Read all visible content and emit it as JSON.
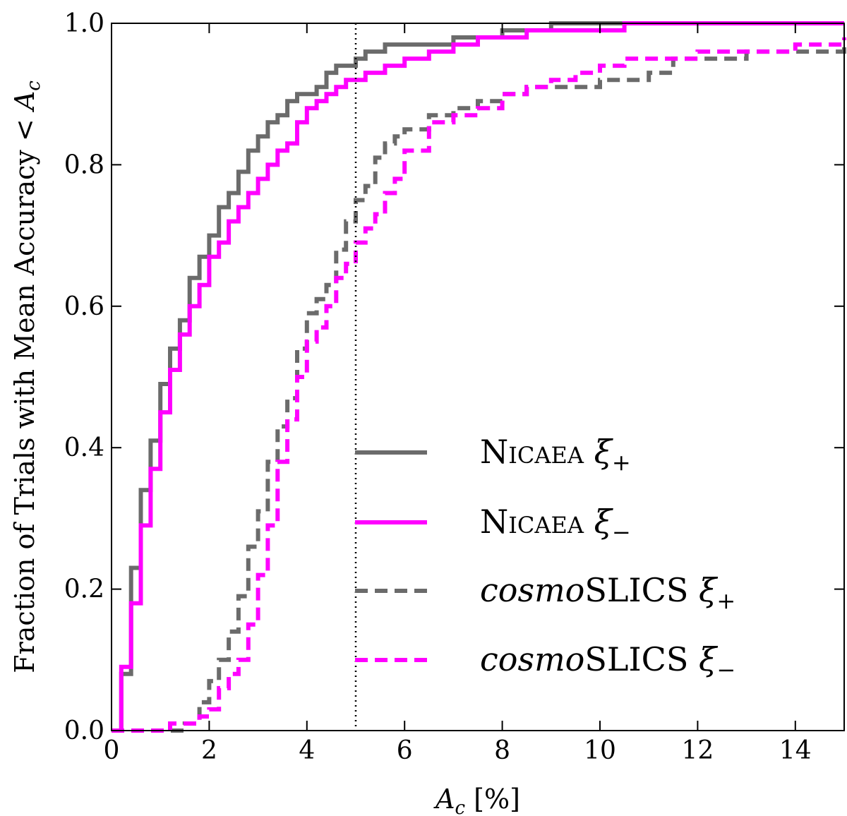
{
  "chart_data": {
    "type": "line",
    "xlabel": "A_c [%]",
    "ylabel": "Fraction of Trials with Mean Accuracy < A_c",
    "xlim": [
      0,
      15
    ],
    "ylim": [
      0,
      1.0
    ],
    "xticks": [
      "0",
      "2",
      "4",
      "6",
      "8",
      "10",
      "12",
      "14"
    ],
    "yticks": [
      "0.0",
      "0.2",
      "0.4",
      "0.6",
      "0.8",
      "1.0"
    ],
    "grid": false,
    "legend_position": "lower-right",
    "reference_line": {
      "x": 5,
      "style": "dotted"
    },
    "series": [
      {
        "name": "Nicaea ξ+",
        "name_main": "Nicaea",
        "name_symbol": "ξ",
        "name_sub": "+",
        "color": "#6b6b6b",
        "linestyle": "solid",
        "x": [
          0,
          0.2,
          0.4,
          0.6,
          0.8,
          1.0,
          1.2,
          1.4,
          1.6,
          1.8,
          2.0,
          2.2,
          2.4,
          2.6,
          2.8,
          3.0,
          3.2,
          3.4,
          3.6,
          3.8,
          4.0,
          4.2,
          4.4,
          4.6,
          4.8,
          5.0,
          5.2,
          5.4,
          5.6,
          5.8,
          6.0,
          6.5,
          7.0,
          7.5,
          8.0,
          8.5,
          9.0,
          10.0,
          15.0
        ],
        "y": [
          0.0,
          0.08,
          0.23,
          0.34,
          0.41,
          0.49,
          0.54,
          0.58,
          0.64,
          0.67,
          0.7,
          0.74,
          0.76,
          0.79,
          0.82,
          0.84,
          0.86,
          0.87,
          0.89,
          0.9,
          0.9,
          0.91,
          0.93,
          0.94,
          0.94,
          0.95,
          0.96,
          0.96,
          0.97,
          0.97,
          0.97,
          0.97,
          0.98,
          0.98,
          0.99,
          0.99,
          1.0,
          1.0,
          1.0
        ]
      },
      {
        "name": "Nicaea ξ−",
        "name_main": "Nicaea",
        "name_symbol": "ξ",
        "name_sub": "−",
        "color": "#ff00ff",
        "linestyle": "solid",
        "x": [
          0,
          0.2,
          0.4,
          0.6,
          0.8,
          1.0,
          1.2,
          1.4,
          1.6,
          1.8,
          2.0,
          2.2,
          2.4,
          2.6,
          2.8,
          3.0,
          3.2,
          3.4,
          3.6,
          3.8,
          4.0,
          4.2,
          4.4,
          4.6,
          4.8,
          5.0,
          5.2,
          5.4,
          5.6,
          5.8,
          6.0,
          6.5,
          7.0,
          7.5,
          8.0,
          8.5,
          9.0,
          10.0,
          10.5,
          15.0
        ],
        "y": [
          0.0,
          0.09,
          0.18,
          0.29,
          0.37,
          0.45,
          0.51,
          0.56,
          0.6,
          0.63,
          0.67,
          0.69,
          0.72,
          0.74,
          0.76,
          0.78,
          0.8,
          0.82,
          0.83,
          0.86,
          0.88,
          0.89,
          0.9,
          0.91,
          0.92,
          0.92,
          0.93,
          0.93,
          0.94,
          0.94,
          0.95,
          0.96,
          0.97,
          0.98,
          0.98,
          0.99,
          0.99,
          0.99,
          1.0,
          1.0
        ]
      },
      {
        "name": "cosmoSLICS ξ+",
        "name_main": "cosmo",
        "name_main2": "SLICS",
        "name_symbol": "ξ",
        "name_sub": "+",
        "color": "#6b6b6b",
        "linestyle": "dashed",
        "x": [
          0,
          0.5,
          1.0,
          1.2,
          1.5,
          1.8,
          2.0,
          2.2,
          2.4,
          2.6,
          2.8,
          3.0,
          3.2,
          3.4,
          3.6,
          3.8,
          4.0,
          4.2,
          4.4,
          4.6,
          4.8,
          5.0,
          5.2,
          5.4,
          5.6,
          5.8,
          6.0,
          6.5,
          7.0,
          7.5,
          8.0,
          8.5,
          9.0,
          9.5,
          10.0,
          10.5,
          11.0,
          11.5,
          12.0,
          13.0,
          14.0,
          15.0
        ],
        "y": [
          0.0,
          0.0,
          0.0,
          0.0,
          0.01,
          0.04,
          0.07,
          0.1,
          0.14,
          0.19,
          0.26,
          0.31,
          0.38,
          0.43,
          0.47,
          0.54,
          0.59,
          0.61,
          0.63,
          0.68,
          0.72,
          0.75,
          0.77,
          0.81,
          0.83,
          0.84,
          0.85,
          0.87,
          0.88,
          0.89,
          0.9,
          0.91,
          0.91,
          0.91,
          0.92,
          0.92,
          0.93,
          0.95,
          0.95,
          0.96,
          0.96,
          0.97
        ]
      },
      {
        "name": "cosmoSLICS ξ−",
        "name_main": "cosmo",
        "name_main2": "SLICS",
        "name_symbol": "ξ",
        "name_sub": "−",
        "color": "#ff00ff",
        "linestyle": "dashed",
        "x": [
          0,
          0.5,
          1.0,
          1.2,
          1.5,
          1.8,
          2.0,
          2.2,
          2.4,
          2.6,
          2.8,
          3.0,
          3.2,
          3.4,
          3.6,
          3.8,
          4.0,
          4.2,
          4.4,
          4.6,
          4.8,
          5.0,
          5.2,
          5.4,
          5.6,
          5.8,
          6.0,
          6.5,
          7.0,
          7.5,
          8.0,
          8.5,
          9.0,
          9.5,
          10.0,
          10.5,
          11.0,
          11.5,
          12.0,
          13.0,
          14.0,
          15.0
        ],
        "y": [
          0.0,
          0.0,
          0.0,
          0.01,
          0.01,
          0.02,
          0.03,
          0.06,
          0.08,
          0.1,
          0.15,
          0.22,
          0.29,
          0.38,
          0.44,
          0.5,
          0.55,
          0.57,
          0.6,
          0.64,
          0.66,
          0.69,
          0.71,
          0.73,
          0.76,
          0.78,
          0.82,
          0.86,
          0.87,
          0.88,
          0.9,
          0.91,
          0.92,
          0.93,
          0.94,
          0.95,
          0.95,
          0.95,
          0.96,
          0.96,
          0.97,
          0.98
        ]
      }
    ]
  }
}
